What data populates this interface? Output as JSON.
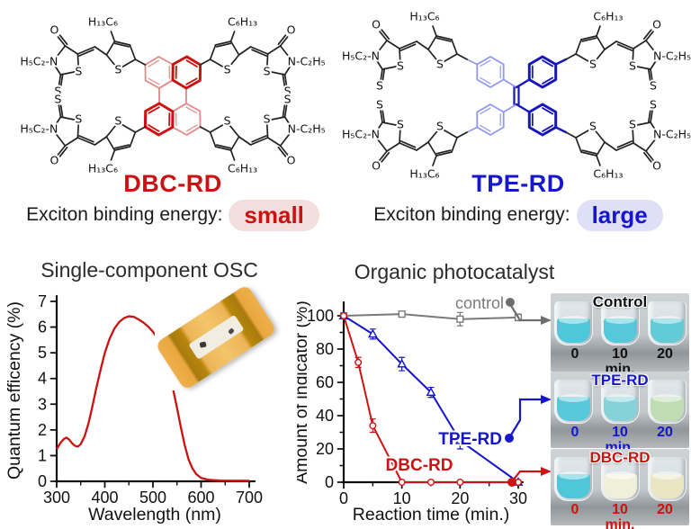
{
  "molecules": {
    "left": {
      "name": "DBC-RD",
      "accent": "#cc1111",
      "pill_bg": "#f3dede",
      "energy_label": "Exciton binding energy:",
      "energy_value": "small"
    },
    "right": {
      "name": "TPE-RD",
      "accent": "#1616cc",
      "pill_bg": "#dfdff7",
      "energy_label": "Exciton binding energy:",
      "energy_value": "large"
    },
    "atom_labels": {
      "oxygen": "O",
      "sulfur": "S",
      "nitrogen_ethyl_left": "H₅C₂-N",
      "nitrogen_ethyl_right": "N-C₂H₅",
      "hexyl_left": "H₁₃C₆",
      "hexyl_right": "C₆H₁₃"
    },
    "core_colors": {
      "dbc_light": "#e28888",
      "dbc_bold": "#cc1111",
      "tpe_light": "#9098ee",
      "tpe_bold": "#1616bb"
    }
  },
  "chart_data": [
    {
      "type": "line",
      "title": "Single-component OSC",
      "xlabel": "Wavelength (nm)",
      "ylabel": "Quantum efficency (%)",
      "xlim": [
        300,
        700
      ],
      "ylim": [
        0,
        7
      ],
      "xticks": [
        300,
        400,
        500,
        600,
        700
      ],
      "xticks_minor": [
        350,
        450,
        550,
        650
      ],
      "yticks": [
        0,
        1,
        2,
        3,
        4,
        5,
        6,
        7
      ],
      "series": [
        {
          "color": "#cc1111",
          "x": [
            300,
            308,
            315,
            320,
            326,
            332,
            338,
            344,
            350,
            358,
            366,
            374,
            382,
            390,
            400,
            410,
            420,
            430,
            440,
            450,
            460,
            470,
            480,
            490,
            500,
            510,
            520,
            530,
            540,
            550,
            558,
            566,
            574,
            582,
            590,
            600,
            615,
            640,
            700
          ],
          "y": [
            1.25,
            1.5,
            1.65,
            1.7,
            1.62,
            1.48,
            1.38,
            1.35,
            1.45,
            1.75,
            2.25,
            2.9,
            3.6,
            4.25,
            5.0,
            5.55,
            5.95,
            6.2,
            6.35,
            6.42,
            6.4,
            6.3,
            6.18,
            6.02,
            5.82,
            5.55,
            5.15,
            4.55,
            3.75,
            2.85,
            2.1,
            1.4,
            0.85,
            0.5,
            0.28,
            0.13,
            0.06,
            0.03,
            0.02
          ]
        }
      ]
    },
    {
      "type": "line",
      "title": "Organic photocatalyst",
      "xlabel": "Reaction time (min.)",
      "ylabel": "Amount of indicator (%)",
      "xlim": [
        0,
        31
      ],
      "ylim": [
        0,
        108
      ],
      "xticks": [
        0,
        10,
        20,
        30
      ],
      "xticks_minor": [
        5,
        15,
        25
      ],
      "yticks": [
        0,
        20,
        40,
        60,
        80,
        100
      ],
      "yticks_minor": [
        10,
        30,
        50,
        70,
        90
      ],
      "series": [
        {
          "name": "control",
          "color": "#7a7a7a",
          "marker": "square",
          "x": [
            0,
            10,
            20,
            30
          ],
          "y": [
            100,
            101,
            98,
            99
          ],
          "yerr": [
            1,
            1.5,
            4,
            2
          ]
        },
        {
          "name": "TPE-RD",
          "color": "#1414cc",
          "marker": "triangle",
          "x": [
            0,
            5,
            10,
            15,
            20,
            30
          ],
          "y": [
            100,
            89,
            71,
            54,
            25,
            0
          ],
          "yerr": [
            0,
            3,
            4,
            3,
            5,
            0
          ]
        },
        {
          "name": "DBC-RD",
          "color": "#cc1414",
          "marker": "circle",
          "x": [
            0,
            2.5,
            5,
            10,
            15,
            20,
            30
          ],
          "y": [
            100,
            72,
            34,
            0,
            0,
            0,
            0
          ],
          "yerr": [
            0,
            3,
            4,
            0,
            0,
            0,
            0
          ]
        }
      ]
    }
  ],
  "photos": {
    "panels": [
      {
        "label": "Control",
        "label_color": "#111111",
        "arrow_color": "#6e6e6e",
        "times": [
          "0",
          "10",
          "20"
        ],
        "unit": "min.",
        "vial_colors": [
          "#4ec7da",
          "#55c8da",
          "#63cbd8"
        ]
      },
      {
        "label": "TPE-RD",
        "label_color": "#1515cc",
        "arrow_color": "#1616cc",
        "times": [
          "0",
          "10",
          "20"
        ],
        "unit": "min.",
        "vial_colors": [
          "#58c9db",
          "#85d2d8",
          "#c0ddb2"
        ]
      },
      {
        "label": "DBC-RD",
        "label_color": "#cc1111",
        "arrow_color": "#cc1414",
        "times": [
          "0",
          "10",
          "20"
        ],
        "unit": "min.",
        "vial_colors": [
          "#4ec7da",
          "#f0f0da",
          "#eae6c4"
        ]
      }
    ]
  }
}
